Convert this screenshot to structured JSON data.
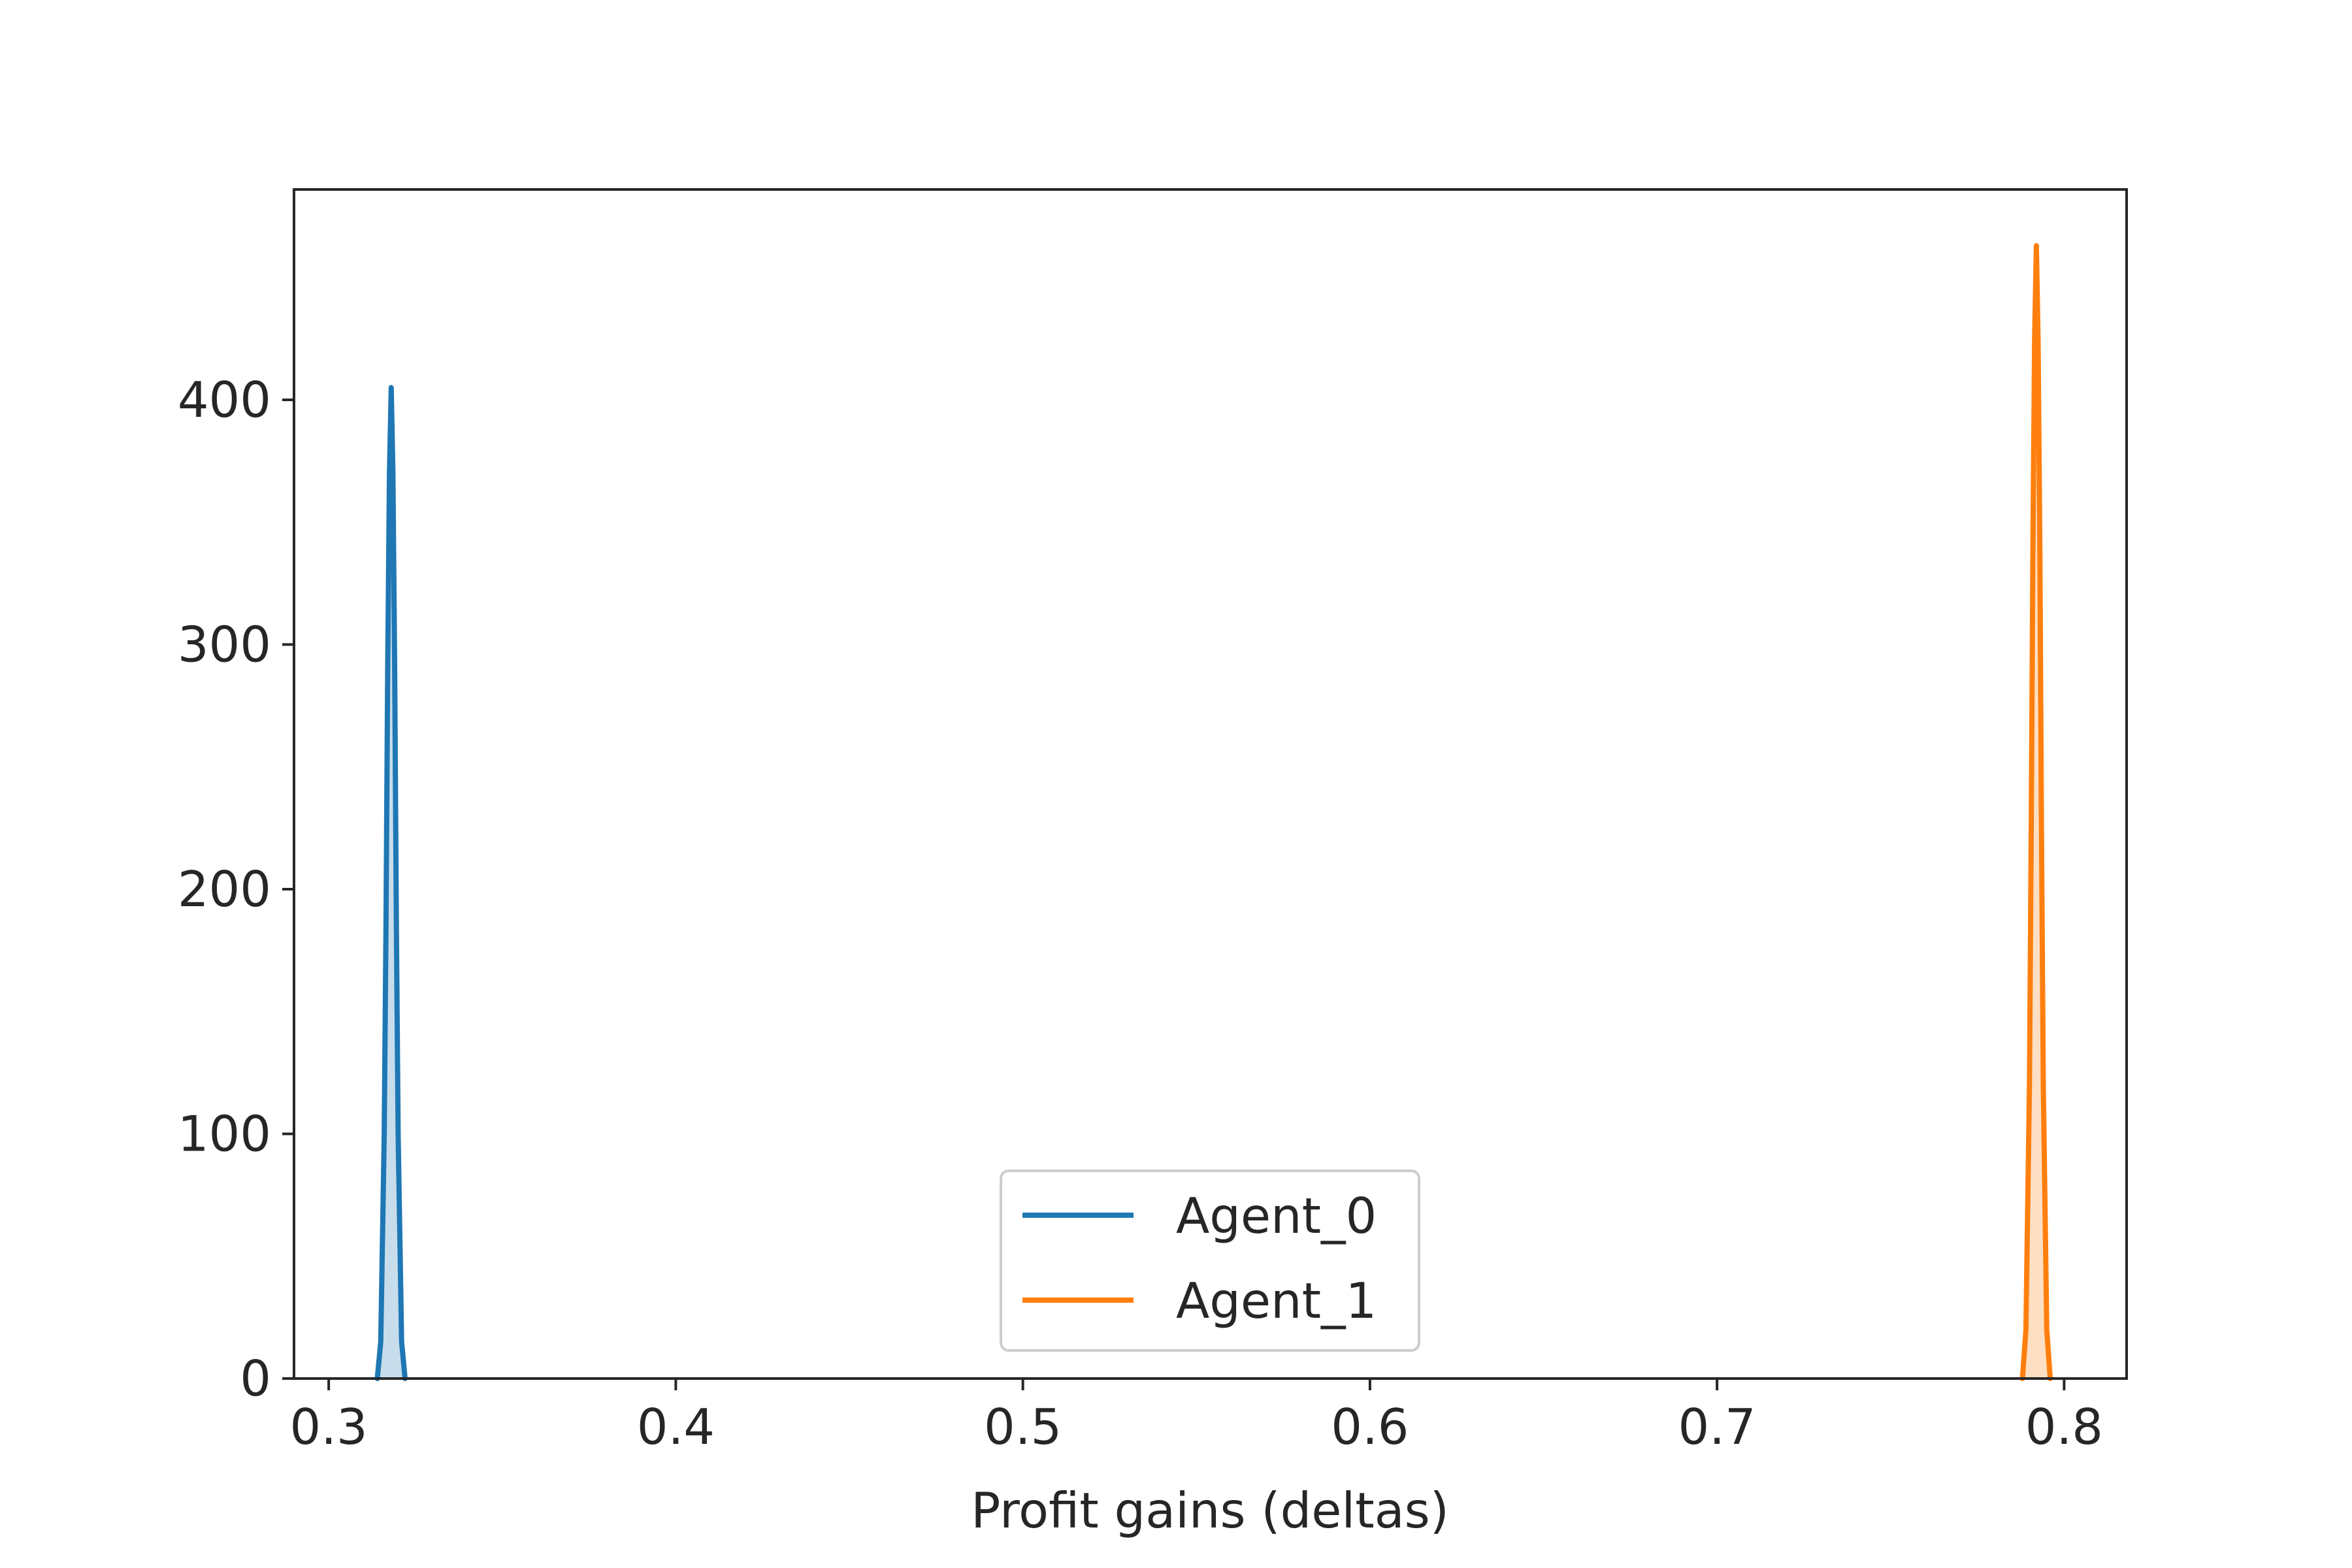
{
  "chart_data": {
    "type": "line",
    "title": "",
    "xlabel": "Profit gains (deltas)",
    "ylabel": "",
    "xlim": [
      0.29,
      0.818
    ],
    "ylim": [
      0,
      486
    ],
    "xticks": [
      0.3,
      0.4,
      0.5,
      0.6,
      0.7,
      0.8
    ],
    "yticks": [
      0,
      100,
      200,
      300,
      400
    ],
    "xtick_labels": [
      "0.3",
      "0.4",
      "0.5",
      "0.6",
      "0.7",
      "0.8"
    ],
    "ytick_labels": [
      "0",
      "100",
      "200",
      "300",
      "400"
    ],
    "grid": false,
    "legend_position": "lower center",
    "fill_under": true,
    "series": [
      {
        "name": "Agent_0",
        "color": "#1f77b4",
        "x": [
          0.314,
          0.315,
          0.316,
          0.3165,
          0.317,
          0.3175,
          0.318,
          0.3185,
          0.319,
          0.3195,
          0.32,
          0.321,
          0.322
        ],
        "y": [
          0,
          15,
          100,
          185,
          290,
          370,
          405,
          370,
          290,
          185,
          100,
          15,
          0
        ]
      },
      {
        "name": "Agent_1",
        "color": "#ff7f0e",
        "x": [
          0.788,
          0.789,
          0.79,
          0.7905,
          0.791,
          0.7915,
          0.792,
          0.7925,
          0.793,
          0.7935,
          0.794,
          0.795,
          0.796
        ],
        "y": [
          0,
          20,
          120,
          220,
          340,
          425,
          463,
          425,
          340,
          220,
          120,
          20,
          0
        ]
      }
    ]
  }
}
